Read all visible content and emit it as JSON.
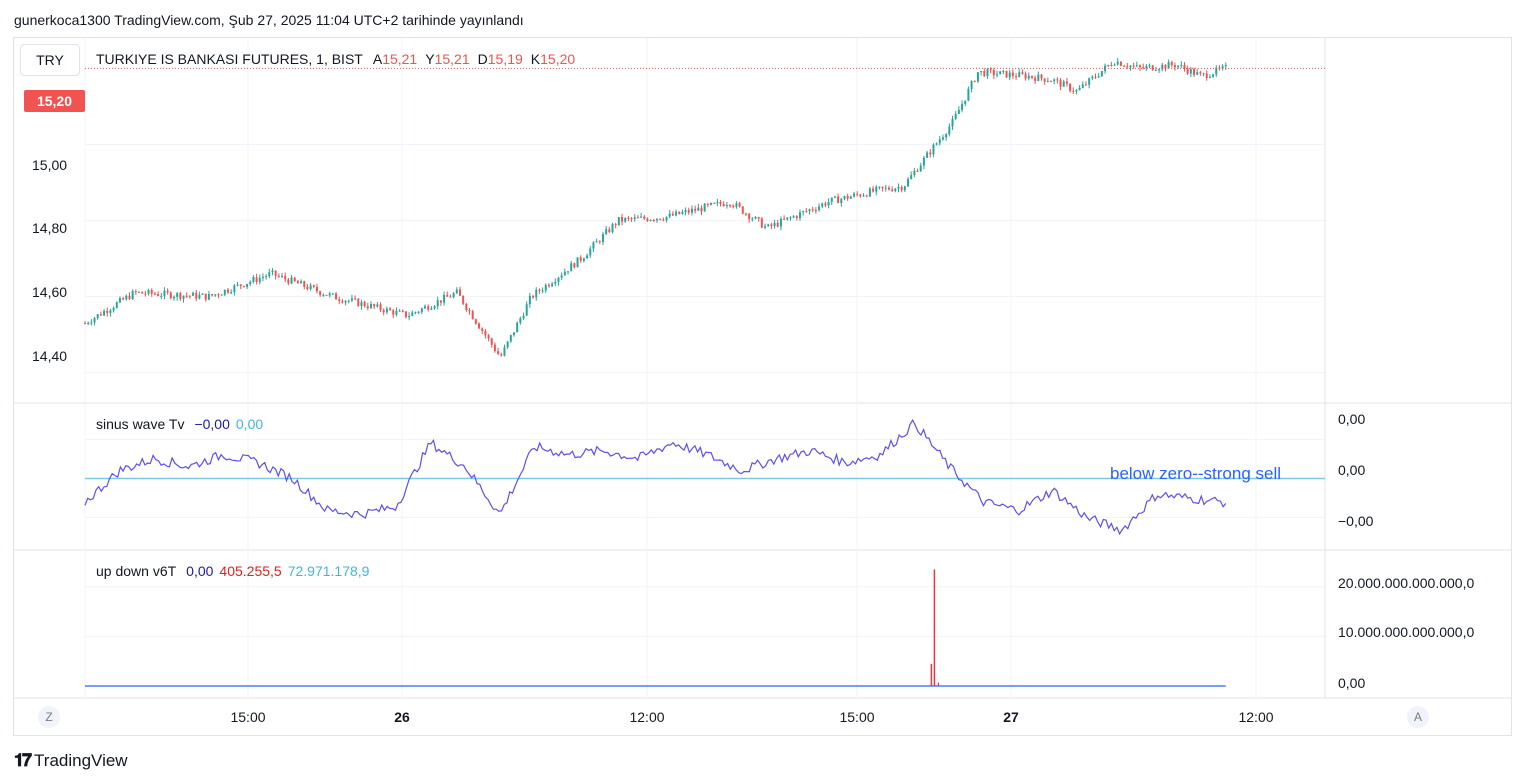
{
  "header": "gunerkoca1300 TradingView.com, Şub 27, 2025 11:04 UTC+2 tarihinde yayınlandı",
  "currency_button": "TRY",
  "main_legend": {
    "title": "TURKIYE IS BANKASI FUTURES, 1, BIST",
    "ohlc": [
      {
        "key": "A",
        "value": "15,21"
      },
      {
        "key": "Y",
        "value": "15,21"
      },
      {
        "key": "D",
        "value": "15,19"
      },
      {
        "key": "K",
        "value": "15,20"
      }
    ]
  },
  "last_price_tag": "15,20",
  "colors": {
    "up": "#26a69a",
    "down": "#ef5350",
    "sinus_line": "#5b4ff0",
    "zero_line": "#7ec8e3",
    "grid": "#f0f3fa",
    "spike": "#f23645",
    "vol_line": "#2962ff",
    "annotation": "#2962ff"
  },
  "price_axis": [
    "15,00",
    "14,80",
    "14,60",
    "14,40"
  ],
  "sinus": {
    "name": "sinus wave Tv",
    "v1": "−0,00",
    "v2": "0,00",
    "axis": [
      "0,00",
      "0,00",
      "−0,00"
    ]
  },
  "updown": {
    "name": "up down v6T",
    "v1": "0,00",
    "v2": "405.255,5",
    "v3": "72.971.178,9",
    "axis": [
      "20.000.000.000.000,0",
      "10.000.000.000.000,0",
      "0,00"
    ]
  },
  "time_axis": [
    {
      "label": "15:00",
      "bold": false
    },
    {
      "label": "26",
      "bold": true
    },
    {
      "label": "12:00",
      "bold": false
    },
    {
      "label": "15:00",
      "bold": false
    },
    {
      "label": "27",
      "bold": true
    },
    {
      "label": "12:00",
      "bold": false
    }
  ],
  "left_button": "Z",
  "right_button": "A",
  "annotation": "below zero--strong sell",
  "logo_text": "TradingView",
  "chart_data": [
    {
      "type": "candlestick",
      "title": "TURKIYE IS BANKASI FUTURES, 1, BIST",
      "ylim": [
        14.32,
        15.28
      ],
      "last": 15.2,
      "keypoints": [
        [
          0,
          14.53
        ],
        [
          0.04,
          14.61
        ],
        [
          0.1,
          14.6
        ],
        [
          0.15,
          14.66
        ],
        [
          0.2,
          14.6
        ],
        [
          0.26,
          14.55
        ],
        [
          0.3,
          14.61
        ],
        [
          0.335,
          14.44
        ],
        [
          0.36,
          14.6
        ],
        [
          0.4,
          14.7
        ],
        [
          0.43,
          14.8
        ],
        [
          0.47,
          14.81
        ],
        [
          0.52,
          14.85
        ],
        [
          0.55,
          14.78
        ],
        [
          0.6,
          14.85
        ],
        [
          0.64,
          14.88
        ],
        [
          0.66,
          14.89
        ],
        [
          0.7,
          15.06
        ],
        [
          0.72,
          15.19
        ],
        [
          0.76,
          15.18
        ],
        [
          0.78,
          15.17
        ],
        [
          0.8,
          15.14
        ],
        [
          0.83,
          15.22
        ],
        [
          0.85,
          15.2
        ],
        [
          0.88,
          15.21
        ],
        [
          0.9,
          15.18
        ],
        [
          0.92,
          15.2
        ]
      ]
    },
    {
      "type": "line",
      "series": [
        {
          "name": "sinus wave Tv",
          "values": [
            -0.6,
            0.2,
            0.5,
            0.3,
            0.6,
            0.4,
            0.0,
            -0.8,
            -0.9,
            -0.7,
            0.9,
            0.3,
            -0.9,
            0.8,
            0.6,
            0.7,
            0.5,
            0.9,
            0.6,
            0.2,
            0.5,
            0.7,
            0.4,
            0.6,
            1.4,
            0.3,
            -0.6,
            -0.8,
            -0.3,
            -1.0,
            -1.3,
            -0.4,
            -0.5,
            -0.6
          ]
        }
      ],
      "zero_line": 0,
      "ylim": [
        -1.6,
        1.6
      ]
    },
    {
      "type": "line",
      "series": [
        {
          "name": "up down v6T",
          "spike_at": 0.685,
          "spike_value": 23500000000000
        }
      ],
      "ylim": [
        0,
        25000000000000
      ]
    }
  ]
}
